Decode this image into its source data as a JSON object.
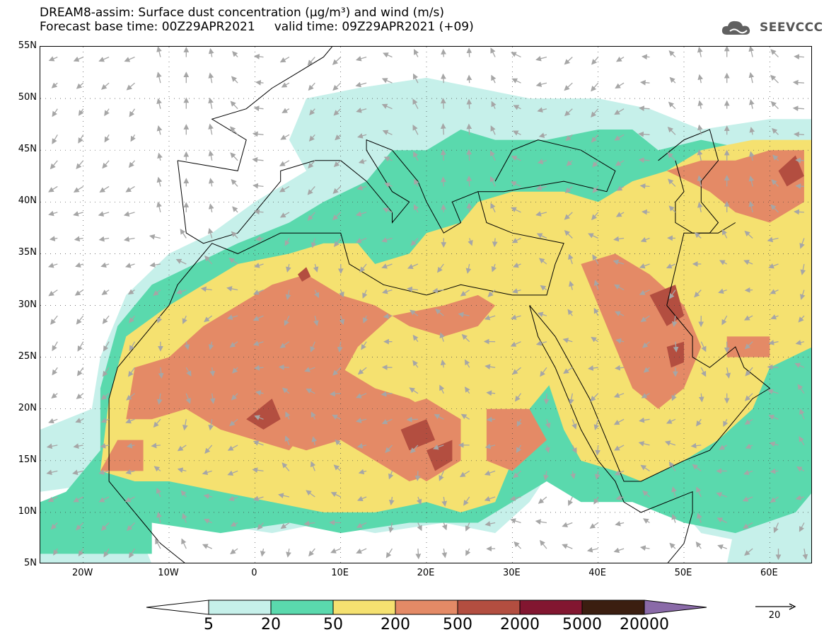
{
  "title": {
    "line1": "DREAM8-assim: Surface dust concentration (μg/m³) and wind (m/s)",
    "line2": "Forecast base time: 00Z29APR2021     valid time: 09Z29APR2021 (+09)"
  },
  "brand": {
    "name": "SEEVCCC",
    "icon": "cloud-logo-icon"
  },
  "map": {
    "lon_range": [
      -25,
      65
    ],
    "lat_range": [
      5,
      55
    ],
    "lat_labels": [
      "5N",
      "10N",
      "15N",
      "20N",
      "25N",
      "30N",
      "35N",
      "40N",
      "45N",
      "50N",
      "55N"
    ],
    "lon_labels": [
      "20W",
      "10W",
      "0",
      "10E",
      "20E",
      "30E",
      "40E",
      "50E",
      "60E"
    ],
    "grid": "dotted"
  },
  "colorbar": {
    "labels": [
      "5",
      "20",
      "50",
      "200",
      "500",
      "2000",
      "5000",
      "20000"
    ],
    "colors": [
      "#ffffff",
      "#c6f0ea",
      "#5ad9ad",
      "#f5e170",
      "#e48a66",
      "#b34e40",
      "#821630",
      "#3b1e10",
      "#8a6aa8"
    ]
  },
  "wind_reference": {
    "value": "20",
    "icon": "reference-arrow-icon"
  }
}
